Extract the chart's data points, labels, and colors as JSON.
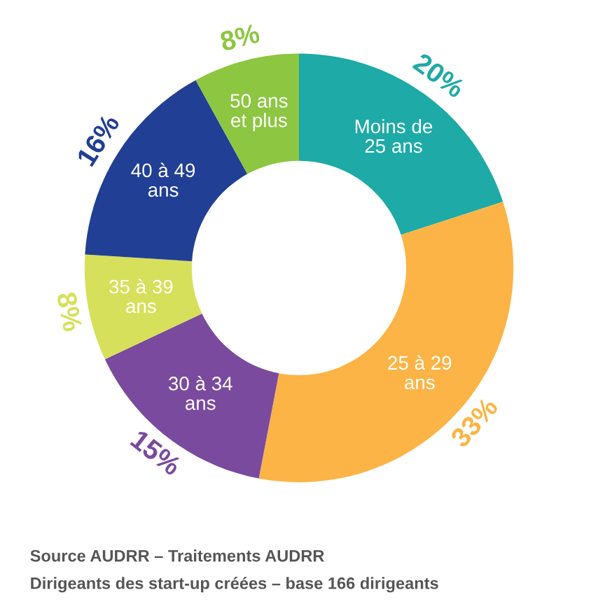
{
  "chart_data": {
    "type": "donut",
    "categories": [
      "Moins de\n25 ans",
      "25 à 29\nans",
      "30 à 34\nans",
      "35 à 39\nans",
      "40 à 49\nans",
      "50 ans\net plus"
    ],
    "values": [
      20,
      33,
      15,
      8,
      16,
      8
    ],
    "value_labels": [
      "20%",
      "33%",
      "15%",
      "8%",
      "16%",
      "8%"
    ],
    "colors": [
      "#1eaaa6",
      "#fbb445",
      "#7a4a9e",
      "#d6e05a",
      "#213f94",
      "#8dc641"
    ],
    "annotations": [
      "Source AUDRR – Traitements AUDRR",
      "Dirigeants des start-up créées – base 166 dirigeants"
    ]
  }
}
